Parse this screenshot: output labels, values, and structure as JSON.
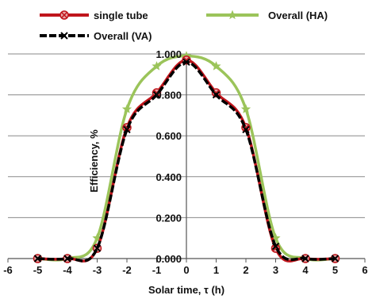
{
  "chart_data": {
    "type": "line",
    "title": "",
    "xlabel": "Solar time, τ (h)",
    "ylabel": "Efficiency, %",
    "xlim": [
      -6,
      6
    ],
    "ylim": [
      0,
      1
    ],
    "x_ticks": [
      "-6",
      "-5",
      "-4",
      "-3",
      "-2",
      "-1",
      "0",
      "1",
      "2",
      "3",
      "4",
      "5",
      "6"
    ],
    "y_ticks": [
      "0.000",
      "0.200",
      "0.400",
      "0.600",
      "0.800",
      "1.000"
    ],
    "grid": "horizontal",
    "legend": "top",
    "series": [
      {
        "name": "single tube",
        "color": "#c0151c",
        "marker": "circle-x",
        "points": [
          [
            -5,
            0
          ],
          [
            -4,
            0
          ],
          [
            -3,
            0.05
          ],
          [
            -2,
            0.64
          ],
          [
            -1,
            0.81
          ],
          [
            0,
            0.97
          ],
          [
            1,
            0.81
          ],
          [
            2,
            0.64
          ],
          [
            3,
            0.05
          ],
          [
            4,
            0
          ],
          [
            5,
            0
          ]
        ]
      },
      {
        "name": "Overall (HA)",
        "color": "#9bc45a",
        "marker": "star",
        "points": [
          [
            -5,
            0
          ],
          [
            -4,
            0
          ],
          [
            -3,
            0.1
          ],
          [
            -2,
            0.73
          ],
          [
            -1,
            0.94
          ],
          [
            0,
            0.99
          ],
          [
            1,
            0.94
          ],
          [
            2,
            0.73
          ],
          [
            3,
            0.1
          ],
          [
            4,
            0
          ],
          [
            5,
            0
          ]
        ]
      },
      {
        "name": "Overall (VA)",
        "color": "#000000",
        "marker": "x",
        "points": [
          [
            -5,
            0
          ],
          [
            -4,
            0
          ],
          [
            -3,
            0.05
          ],
          [
            -2,
            0.63
          ],
          [
            -1,
            0.8
          ],
          [
            0,
            0.96
          ],
          [
            1,
            0.8
          ],
          [
            2,
            0.63
          ],
          [
            3,
            0.06
          ],
          [
            4,
            0
          ],
          [
            5,
            0
          ]
        ]
      }
    ]
  }
}
